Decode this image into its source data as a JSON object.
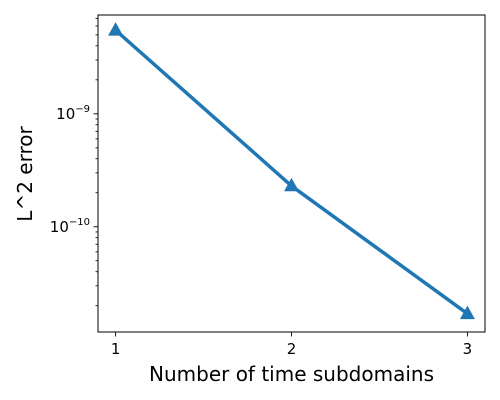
{
  "chart_data": {
    "type": "line",
    "title": "",
    "xlabel": "Number of time subdomains",
    "ylabel": "L^2 error",
    "x": [
      1,
      2,
      3
    ],
    "series": [
      {
        "values": [
          5.5e-09,
          2.3e-10,
          1.7e-11
        ],
        "color": "#1f77b4",
        "marker": "triangle-up"
      }
    ],
    "x_ticks": [
      {
        "value": 1,
        "label": "1"
      },
      {
        "value": 2,
        "label": "2"
      },
      {
        "value": 3,
        "label": "3"
      }
    ],
    "y_scale": "log",
    "y_major_ticks": [
      {
        "value": 1e-09,
        "base": "10",
        "exp": "−9"
      },
      {
        "value": 1e-10,
        "base": "10",
        "exp": "−10"
      }
    ],
    "xlim": [
      0.9,
      3.1
    ],
    "ylim": [
      1.17e-11,
      7.5e-09
    ],
    "grid": false,
    "legend": "none"
  }
}
